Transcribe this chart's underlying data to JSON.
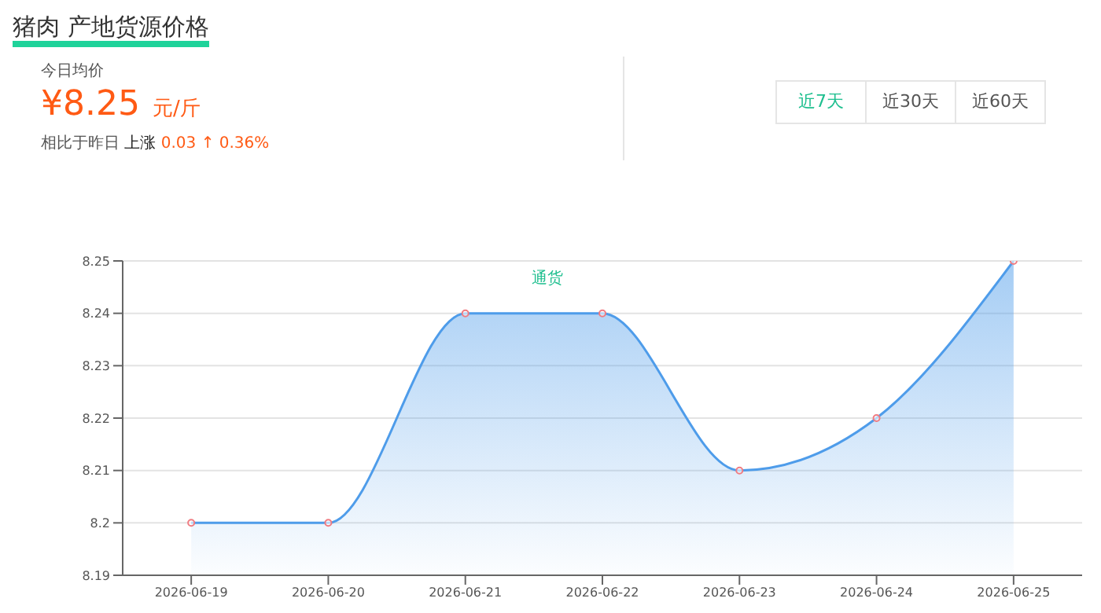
{
  "chart_data": {
    "type": "area",
    "title": "猪肉 产地货源价格",
    "annotations": [
      "今日均价",
      "¥8.25",
      "元/斤",
      "相比于昨日",
      "上涨",
      "0.03 ↑ 0.36%",
      "近7天",
      "近30天",
      "近60天"
    ],
    "categories": [
      "2026-06-19",
      "2026-06-20",
      "2026-06-21",
      "2026-06-22",
      "2026-06-23",
      "2026-06-24",
      "2026-06-25"
    ],
    "series": [
      {
        "name": "通货",
        "color": "#4e9cea",
        "values": [
          8.2,
          8.2,
          8.24,
          8.24,
          8.21,
          8.22,
          8.25
        ]
      }
    ],
    "ylim": [
      8.19,
      8.25
    ],
    "yticks": [
      8.19,
      8.2,
      8.21,
      8.22,
      8.23,
      8.24,
      8.25
    ],
    "grid": "y",
    "legend": "top",
    "marker": "circle"
  }
}
